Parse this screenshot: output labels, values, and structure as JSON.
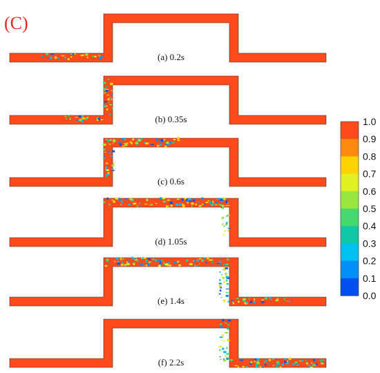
{
  "figure_label": "(C)",
  "colors": {
    "pipe": "#ff4a1c",
    "outline": "#333333",
    "label": "#e8261a"
  },
  "panels": [
    {
      "id": "a",
      "label": "(a) 0.2s"
    },
    {
      "id": "b",
      "label": "(b) 0.35s"
    },
    {
      "id": "c",
      "label": "(c) 0.6s"
    },
    {
      "id": "d",
      "label": "(d) 1.05s"
    },
    {
      "id": "e",
      "label": "(e) 1.4s"
    },
    {
      "id": "f",
      "label": "(f) 2.2s"
    }
  ],
  "colorbar": {
    "ticks": [
      "1.0",
      "0.9",
      "0.8",
      "0.7",
      "0.6",
      "0.5",
      "0.4",
      "0.3",
      "0.2",
      "0.1",
      "0.0"
    ],
    "colors": [
      "#ff4a1c",
      "#ff8a10",
      "#ffd200",
      "#e0f020",
      "#9ae640",
      "#46d970",
      "#10c8a8",
      "#00c0f0",
      "#0090f8",
      "#0050f0"
    ]
  }
}
